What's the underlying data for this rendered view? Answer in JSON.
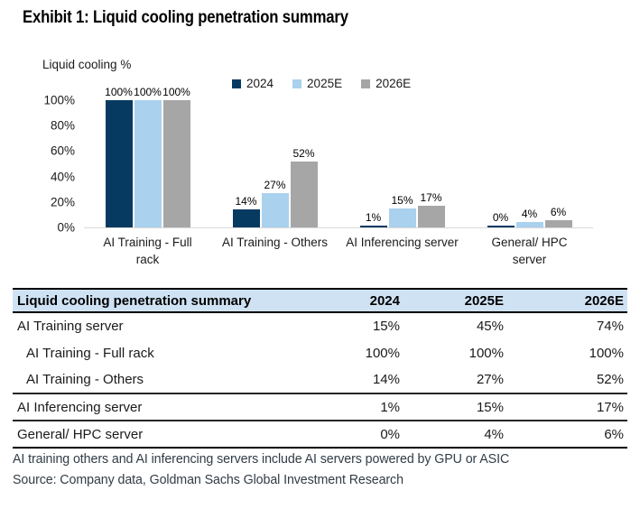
{
  "title": "Exhibit 1: Liquid cooling penetration summary",
  "chart_data": {
    "type": "bar",
    "axis_label": "Liquid cooling %",
    "ylabel": "Liquid cooling %",
    "ylim": [
      0,
      100
    ],
    "grid": false,
    "legend_position": "top",
    "y_ticks": [
      "100%",
      "80%",
      "60%",
      "40%",
      "20%",
      "0%"
    ],
    "categories": [
      "AI Training - Full rack",
      "AI Training - Others",
      "AI Inferencing server",
      "General/ HPC server"
    ],
    "category_label_lines": [
      [
        "AI Training - Full",
        "rack"
      ],
      [
        "AI Training - Others"
      ],
      [
        "AI Inferencing server"
      ],
      [
        "General/ HPC",
        "server"
      ]
    ],
    "series": [
      {
        "name": "2024",
        "color": "#063a61",
        "values": [
          100,
          14,
          1,
          0
        ],
        "labels": [
          "100%",
          "14%",
          "1%",
          "0%"
        ]
      },
      {
        "name": "2025E",
        "color": "#aad1ee",
        "values": [
          100,
          27,
          15,
          4
        ],
        "labels": [
          "100%",
          "27%",
          "15%",
          "4%"
        ]
      },
      {
        "name": "2026E",
        "color": "#a6a6a6",
        "values": [
          100,
          52,
          17,
          6
        ],
        "labels": [
          "100%",
          "52%",
          "17%",
          "6%"
        ]
      }
    ]
  },
  "table": {
    "title": "Liquid cooling penetration summary",
    "columns": [
      "2024",
      "2025E",
      "2026E"
    ],
    "rows": [
      {
        "label": "AI Training server",
        "indent": false,
        "values": [
          "15%",
          "45%",
          "74%"
        ],
        "rule_below": false
      },
      {
        "label": "AI Training - Full rack",
        "indent": true,
        "values": [
          "100%",
          "100%",
          "100%"
        ],
        "rule_below": false
      },
      {
        "label": "AI Training - Others",
        "indent": true,
        "values": [
          "14%",
          "27%",
          "52%"
        ],
        "rule_below": true
      },
      {
        "label": "AI Inferencing server",
        "indent": false,
        "values": [
          "1%",
          "15%",
          "17%"
        ],
        "rule_below": true
      },
      {
        "label": "General/ HPC server",
        "indent": false,
        "values": [
          "0%",
          "4%",
          "6%"
        ],
        "rule_below": true
      }
    ],
    "header_bg": "#cfe2f4"
  },
  "footnote": "AI training others and AI inferencing servers include AI servers powered by GPU or ASIC",
  "source": "Source: Company data, Goldman Sachs Global Investment Research",
  "colors": {
    "bar_2024": "#063a61",
    "bar_2025e": "#aad1ee",
    "bar_2026e": "#a6a6a6",
    "table_header_bg": "#cfe2f4",
    "baseline": "#d9d9d9",
    "text": "#1a1a1a"
  }
}
